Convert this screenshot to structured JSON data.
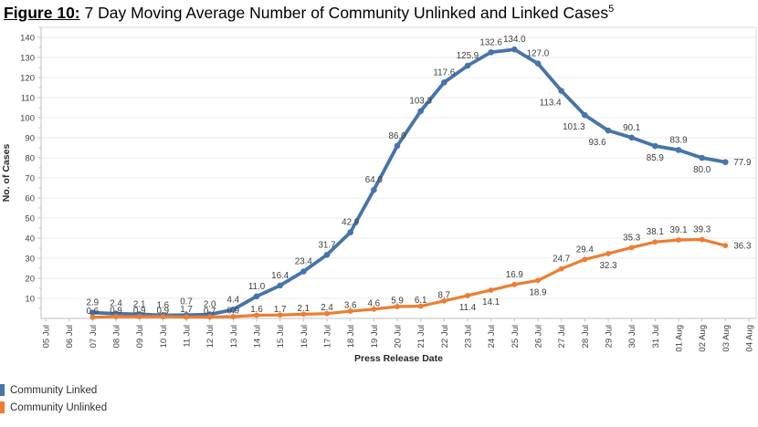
{
  "page": {
    "title": {
      "figure_label": "Figure 10:",
      "title_text": " 7 Day Moving Average Number of Community Unlinked and Linked Cases",
      "superscript": "5"
    }
  },
  "chart_data": {
    "type": "line",
    "title": "7 Day Moving Average Number of Community Unlinked and Linked Cases",
    "xlabel": "Press Release Date",
    "ylabel": "No. of Cases",
    "ylim": [
      0,
      145
    ],
    "yticks": [
      10,
      20,
      30,
      40,
      50,
      60,
      70,
      80,
      90,
      100,
      110,
      120,
      130,
      140
    ],
    "grid": true,
    "legend_position": "bottom-left",
    "categories": [
      "05 Jul",
      "06 Jul",
      "07 Jul",
      "08 Jul",
      "09 Jul",
      "10 Jul",
      "11 Jul",
      "12 Jul",
      "13 Jul",
      "14 Jul",
      "15 Jul",
      "16 Jul",
      "17 Jul",
      "18 Jul",
      "19 Jul",
      "20 Jul",
      "21 Jul",
      "22 Jul",
      "23 Jul",
      "24 Jul",
      "25 Jul",
      "26 Jul",
      "27 Jul",
      "28 Jul",
      "29 Jul",
      "30 Jul",
      "31 Jul",
      "01 Aug",
      "02 Aug",
      "03 Aug",
      "04 Aug"
    ],
    "series": [
      {
        "name": "Community Linked",
        "color": "#4674ab",
        "values": [
          null,
          null,
          2.9,
          2.4,
          2.1,
          1.6,
          1.7,
          2.0,
          4.4,
          11.0,
          16.4,
          23.4,
          31.7,
          42.9,
          64.0,
          86.0,
          103.3,
          117.6,
          125.9,
          132.6,
          134.0,
          127.0,
          113.4,
          101.3,
          93.6,
          90.1,
          85.9,
          83.9,
          80.0,
          77.9,
          null
        ],
        "label_pos": [
          null,
          null,
          "a",
          "a",
          "a",
          "a",
          "n",
          "a",
          "a",
          "a",
          "a",
          "a",
          "a",
          "a",
          "a",
          "a",
          "a",
          "a",
          "a",
          "a",
          "a",
          "a",
          "bl",
          "bl",
          "bl",
          "a",
          "b",
          "a",
          "b",
          "r",
          null
        ]
      },
      {
        "name": "Community Unlinked",
        "color": "#ed7d31",
        "values": [
          null,
          null,
          0.6,
          0.9,
          0.9,
          0.9,
          0.7,
          0.7,
          0.9,
          1.6,
          1.7,
          2.1,
          2.4,
          3.6,
          4.6,
          5.9,
          6.1,
          8.7,
          11.4,
          14.1,
          16.9,
          18.9,
          24.7,
          29.4,
          32.3,
          35.3,
          38.1,
          39.1,
          39.3,
          36.3,
          null
        ],
        "label_pos": [
          null,
          null,
          "n",
          "n",
          "n",
          "n",
          "A",
          "n",
          "n",
          "n",
          "n",
          "n",
          "n",
          "n",
          "n",
          "n",
          "n",
          "n",
          "b",
          "b",
          "a",
          "b",
          "a",
          "a",
          "b",
          "a",
          "a",
          "a",
          "a",
          "r",
          null
        ]
      }
    ]
  }
}
